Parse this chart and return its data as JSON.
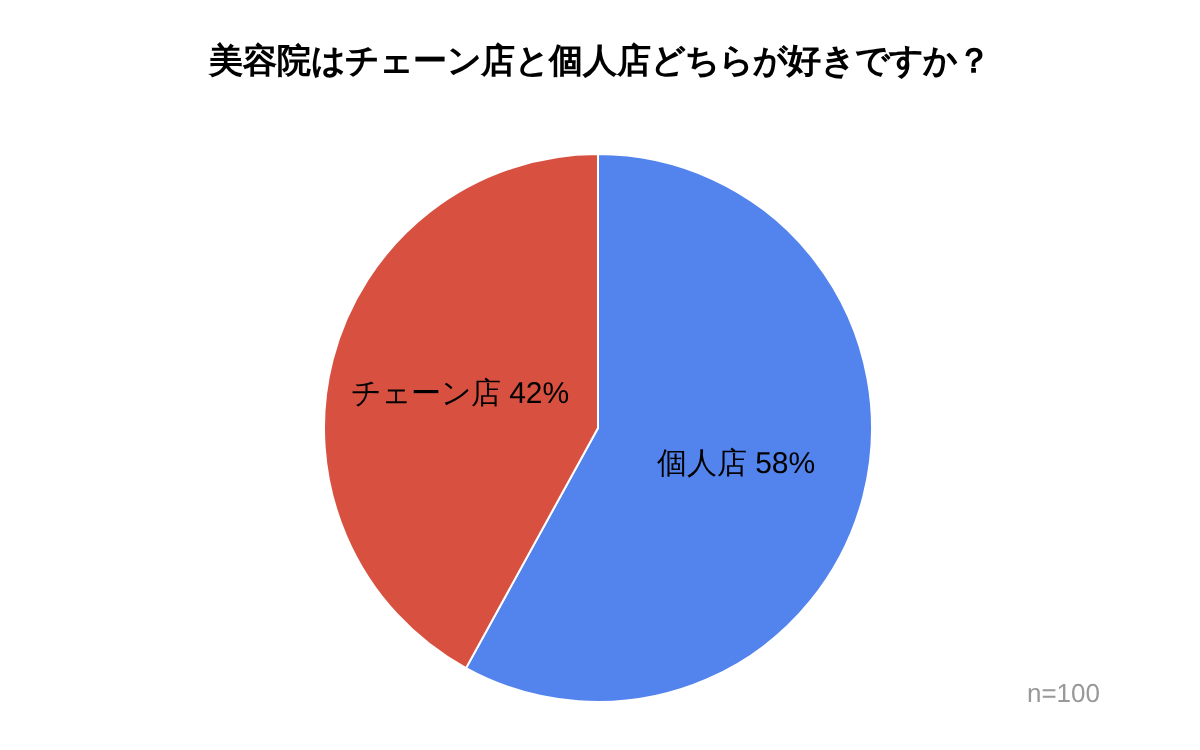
{
  "chart_data": {
    "type": "pie",
    "title": "美容院はチェーン店と個人店どちらが好きですか？",
    "categories": [
      "個人店",
      "チェーン店"
    ],
    "values": [
      58,
      42
    ],
    "colors": [
      "#5383ec",
      "#d85140"
    ],
    "value_labels": [
      "58%",
      "42%"
    ],
    "annotations": [
      "n=100"
    ]
  }
}
